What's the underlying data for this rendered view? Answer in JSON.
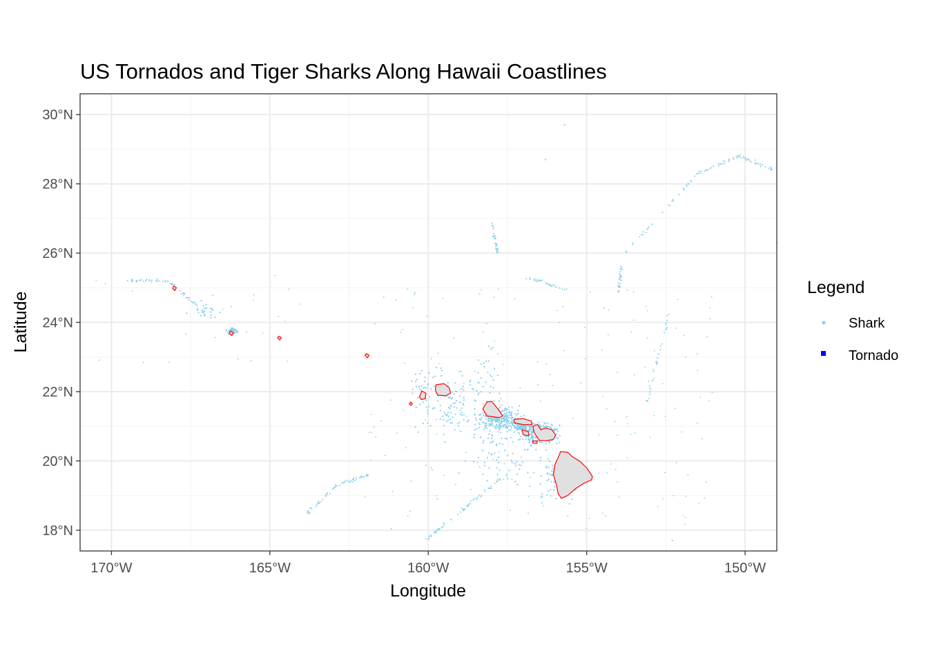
{
  "chart_data": {
    "type": "scatter",
    "title": "US Tornados and Tiger Sharks Along Hawaii Coastlines",
    "xlabel": "Longitude",
    "ylabel": "Latitude",
    "xlim": [
      -170.99,
      -149
    ],
    "ylim": [
      17.4,
      30.6
    ],
    "x_ticks": [
      {
        "value": -170,
        "label": "170°W"
      },
      {
        "value": -165,
        "label": "165°W"
      },
      {
        "value": -160,
        "label": "160°W"
      },
      {
        "value": -155,
        "label": "155°W"
      },
      {
        "value": -150,
        "label": "150°W"
      }
    ],
    "y_ticks": [
      {
        "value": 18,
        "label": "18°N"
      },
      {
        "value": 20,
        "label": "20°N"
      },
      {
        "value": 22,
        "label": "22°N"
      },
      {
        "value": 24,
        "label": "24°N"
      },
      {
        "value": 26,
        "label": "26°N"
      },
      {
        "value": 28,
        "label": "28°N"
      },
      {
        "value": 30,
        "label": "30°N"
      }
    ],
    "grid": true,
    "legend": {
      "title": "Legend",
      "placement": "right",
      "entries": [
        {
          "label": "Shark",
          "color": "#87ceeb",
          "symbol": "point"
        },
        {
          "label": "Tornado",
          "color": "#0000ff",
          "symbol": "square"
        }
      ]
    },
    "land_fill": "#e0e0e0",
    "coast_color": "#ff0000",
    "islands": [
      {
        "name": "Hawaii",
        "lon": [
          -155.83,
          -155.6,
          -155.45,
          -155.2,
          -155.0,
          -154.82,
          -154.85,
          -155.1,
          -155.35,
          -155.6,
          -155.8,
          -155.9,
          -155.95,
          -156.05,
          -156.0,
          -155.85
        ],
        "lat": [
          20.27,
          20.25,
          20.12,
          19.98,
          19.8,
          19.55,
          19.45,
          19.35,
          19.2,
          19.0,
          18.92,
          19.05,
          19.3,
          19.6,
          19.9,
          20.2
        ]
      },
      {
        "name": "Maui",
        "lon": [
          -156.7,
          -156.55,
          -156.45,
          -156.3,
          -156.1,
          -155.98,
          -156.05,
          -156.3,
          -156.5,
          -156.65
        ],
        "lat": [
          21.0,
          21.05,
          20.9,
          20.95,
          20.9,
          20.75,
          20.62,
          20.58,
          20.6,
          20.8
        ]
      },
      {
        "name": "Molokai",
        "lon": [
          -157.3,
          -157.0,
          -156.75,
          -156.72,
          -157.0,
          -157.28
        ],
        "lat": [
          21.2,
          21.22,
          21.15,
          21.05,
          21.05,
          21.1
        ]
      },
      {
        "name": "Lanai",
        "lon": [
          -157.05,
          -156.85,
          -156.82,
          -157.0
        ],
        "lat": [
          20.9,
          20.85,
          20.73,
          20.75
        ]
      },
      {
        "name": "Kahoolawe",
        "lon": [
          -156.7,
          -156.55,
          -156.58,
          -156.7
        ],
        "lat": [
          20.58,
          20.57,
          20.5,
          20.52
        ]
      },
      {
        "name": "Oahu",
        "lon": [
          -158.15,
          -158.0,
          -157.8,
          -157.65,
          -157.75,
          -158.0,
          -158.15,
          -158.28
        ],
        "lat": [
          21.7,
          21.72,
          21.5,
          21.3,
          21.25,
          21.28,
          21.3,
          21.5
        ]
      },
      {
        "name": "Kauai",
        "lon": [
          -159.75,
          -159.5,
          -159.33,
          -159.3,
          -159.45,
          -159.7,
          -159.78
        ],
        "lat": [
          22.2,
          22.23,
          22.1,
          21.95,
          21.88,
          21.9,
          22.05
        ]
      },
      {
        "name": "Niihau",
        "lon": [
          -160.2,
          -160.07,
          -160.1,
          -160.22,
          -160.28
        ],
        "lat": [
          22.02,
          21.95,
          21.8,
          21.77,
          21.85
        ]
      },
      {
        "name": "Kaula",
        "lon": [
          -160.55,
          -160.5,
          -160.55,
          -160.6
        ],
        "lat": [
          21.7,
          21.65,
          21.6,
          21.65
        ]
      },
      {
        "name": "Nihoa",
        "lon": [
          -161.95,
          -161.87,
          -161.92,
          -162.0
        ],
        "lat": [
          23.1,
          23.05,
          22.98,
          23.05
        ]
      },
      {
        "name": "Necker",
        "lon": [
          -164.72,
          -164.64,
          -164.69,
          -164.76
        ],
        "lat": [
          23.6,
          23.56,
          23.49,
          23.56
        ]
      },
      {
        "name": "French Frigate Shoals",
        "lon": [
          -166.25,
          -166.15,
          -166.2,
          -166.28
        ],
        "lat": [
          23.75,
          23.7,
          23.62,
          23.68
        ]
      },
      {
        "name": "Gardner Pinnacles",
        "lon": [
          -168.03,
          -167.95,
          -168.0,
          -168.07
        ],
        "lat": [
          25.05,
          25.0,
          24.92,
          24.98
        ]
      }
    ]
  }
}
